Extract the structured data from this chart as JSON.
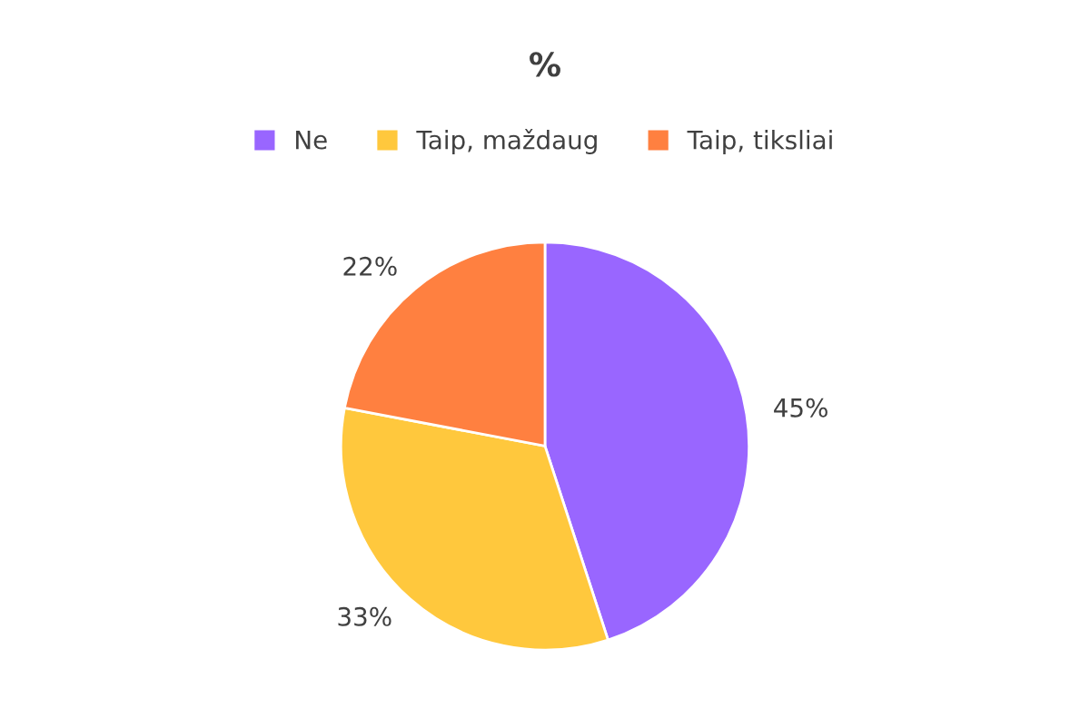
{
  "chart_data": {
    "type": "pie",
    "title": "%",
    "categories": [
      "Ne",
      "Taip, maždaug",
      "Taip, tiksliai"
    ],
    "values": [
      45,
      33,
      22
    ],
    "colors": [
      "#9966ff",
      "#ffc83d",
      "#ff8040"
    ],
    "value_labels": [
      "45%",
      "33%",
      "22%"
    ],
    "legend": "top"
  }
}
